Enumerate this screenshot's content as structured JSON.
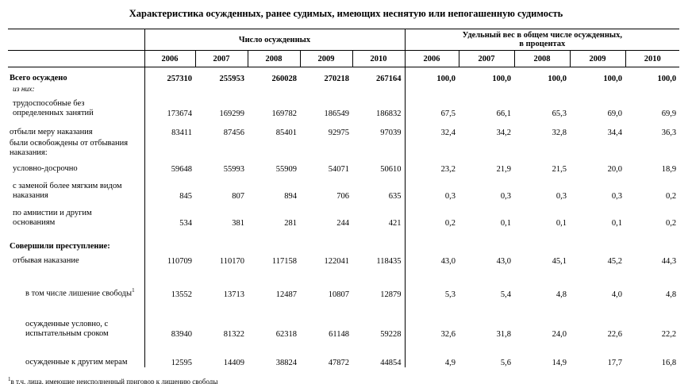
{
  "title": "Характеристика осужденных, ранее судимых, имеющих неснятую или непогашенную судимость",
  "header": {
    "group_count": "Число осужденных",
    "group_share_line1": "Удельный вес в общем числе осужденных,",
    "group_share_line2": "в процентах",
    "years": [
      "2006",
      "2007",
      "2008",
      "2009",
      "2010"
    ]
  },
  "rows": [
    {
      "label": "Всего осуждено",
      "counts": [
        "257310",
        "255953",
        "260028",
        "270218",
        "267164"
      ],
      "shares": [
        "100,0",
        "100,0",
        "100,0",
        "100,0",
        "100,0"
      ]
    },
    {
      "label": "из них:"
    },
    {
      "label": "трудоспособные без",
      "label2": "определенных занятий",
      "counts": [
        "173674",
        "169299",
        "169782",
        "186549",
        "186832"
      ],
      "shares": [
        "67,5",
        "66,1",
        "65,3",
        "69,0",
        "69,9"
      ]
    },
    {
      "label": "отбыли меру наказания",
      "counts": [
        "83411",
        "87456",
        "85401",
        "92975",
        "97039"
      ],
      "shares": [
        "32,4",
        "34,2",
        "32,8",
        "34,4",
        "36,3"
      ]
    },
    {
      "label": "были освобождены от отбывания",
      "label2": "наказания:"
    },
    {
      "label": "условно-досрочно",
      "counts": [
        "59648",
        "55993",
        "55909",
        "54071",
        "50610"
      ],
      "shares": [
        "23,2",
        "21,9",
        "21,5",
        "20,0",
        "18,9"
      ]
    },
    {
      "label": "с заменой более мягким видом",
      "label2": "наказания",
      "counts": [
        "845",
        "807",
        "894",
        "706",
        "635"
      ],
      "shares": [
        "0,3",
        "0,3",
        "0,3",
        "0,3",
        "0,2"
      ]
    },
    {
      "label": "по амнистии и другим",
      "label2": "основаниям",
      "counts": [
        "534",
        "381",
        "281",
        "244",
        "421"
      ],
      "shares": [
        "0,2",
        "0,1",
        "0,1",
        "0,1",
        "0,2"
      ]
    },
    {
      "label": "Совершили преступление:"
    },
    {
      "label": "отбывая наказание",
      "counts": [
        "110709",
        "110170",
        "117158",
        "122041",
        "118435"
      ],
      "shares": [
        "43,0",
        "43,0",
        "45,1",
        "45,2",
        "44,3"
      ]
    },
    {
      "label": "в том числе лишение свободы",
      "sup": "1",
      "counts": [
        "13552",
        "13713",
        "12487",
        "10807",
        "12879"
      ],
      "shares": [
        "5,3",
        "5,4",
        "4,8",
        "4,0",
        "4,8"
      ]
    },
    {
      "label": "осужденные условно, с",
      "label2": "испытательным сроком",
      "counts": [
        "83940",
        "81322",
        "62318",
        "61148",
        "59228"
      ],
      "shares": [
        "32,6",
        "31,8",
        "24,0",
        "22,6",
        "22,2"
      ]
    },
    {
      "label": "осужденные к другим мерам",
      "counts": [
        "12595",
        "14409",
        "38824",
        "47872",
        "44854"
      ],
      "shares": [
        "4,9",
        "5,6",
        "14,9",
        "17,7",
        "16,8"
      ]
    }
  ],
  "footnote": {
    "sup": "1",
    "text": "в т.ч. лица, имеющие неисполненный приговор к лишению свободы"
  }
}
